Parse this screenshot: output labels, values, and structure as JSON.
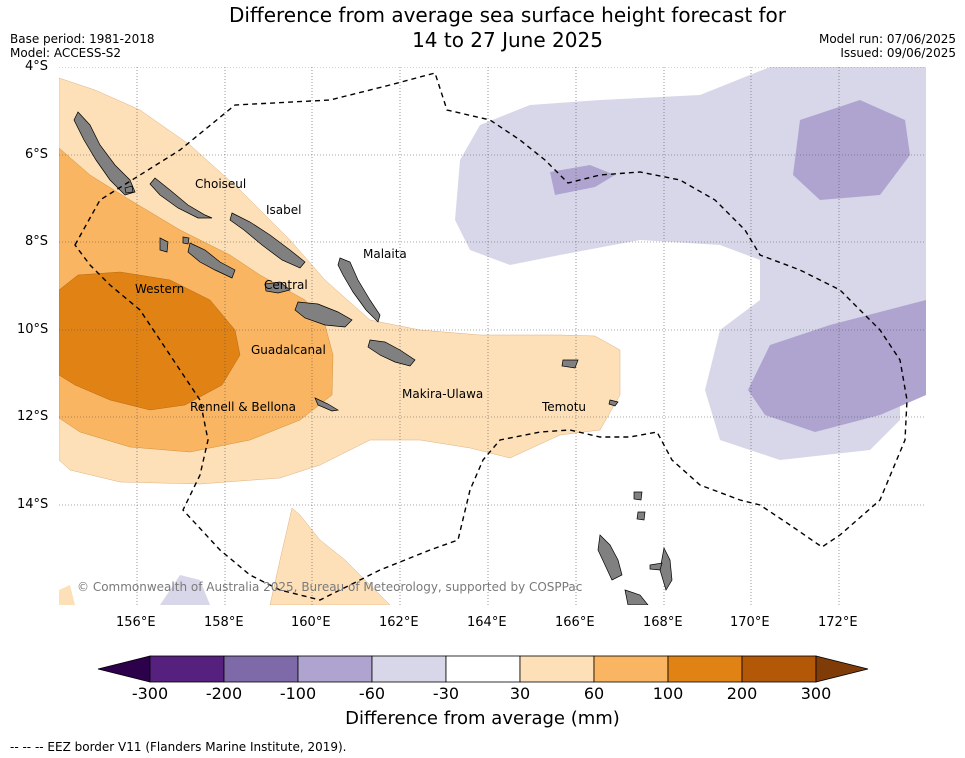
{
  "title_line1": "Difference from average sea surface height forecast for",
  "title_line2": "14 to 27 June 2025",
  "base_period": "Base period: 1981-2018",
  "model": "Model: ACCESS-S2",
  "model_run": "Model run: 07/06/2025",
  "issued": "Issued: 09/06/2025",
  "lat_labels": [
    "4°S",
    "6°S",
    "8°S",
    "10°S",
    "12°S",
    "14°S"
  ],
  "lon_labels": [
    "156°E",
    "158°E",
    "160°E",
    "162°E",
    "164°E",
    "166°E",
    "168°E",
    "170°E",
    "172°E"
  ],
  "places": {
    "choiseul": "Choiseul",
    "isabel": "Isabel",
    "malaita": "Malaita",
    "western": "Western",
    "central": "Central",
    "guadalcanal": "Guadalcanal",
    "makira": "Makira-Ulawa",
    "rennell": "Rennell & Bellona",
    "temotu": "Temotu"
  },
  "copyright": "© Commonwealth of Australia 2025, Bureau of Meteorology, supported by COSPPac",
  "colorbar": {
    "ticks": [
      "-300",
      "-200",
      "-100",
      "-60",
      "-30",
      "30",
      "60",
      "100",
      "200",
      "300"
    ],
    "colors": [
      "#56207f",
      "#7e6aa8",
      "#aea4cf",
      "#d8d7e9",
      "#ffffff",
      "#fde0b8",
      "#f9b562",
      "#e08214",
      "#b35806"
    ],
    "under_color": "#2d004b",
    "over_color": "#7f3b08",
    "title": "Difference from average (mm)"
  },
  "footnote": "--  --  -- EEZ border V11 (Flanders Marine Institute, 2019)."
}
